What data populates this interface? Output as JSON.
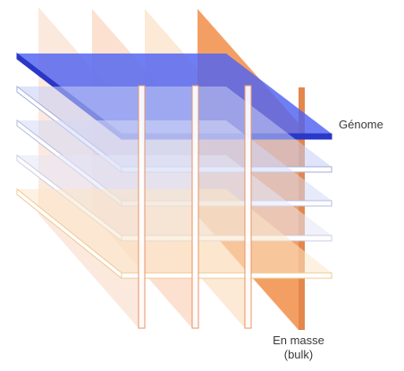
{
  "labels": {
    "genome": "Génome",
    "bulk_line1": "En masse",
    "bulk_line2": "(bulk)"
  },
  "colors": {
    "vertical_planes": [
      "#fbe3d6",
      "#fbd8c4",
      "#fbe4cc",
      "#f29a5c"
    ],
    "vertical_plane_edges": [
      "#f3c6ab",
      "#f2bb9c",
      "#f1cfa8",
      "#e07a3a"
    ],
    "horizontal_planes": [
      "#4f63f0",
      "#c5cdf5",
      "#d3d8f5",
      "#e4e6f6",
      "#fbe6c8"
    ],
    "horizontal_plane_edges": [
      "#2a38c8",
      "#a3add9",
      "#b5bbdc",
      "#c9cce0",
      "#efc892"
    ],
    "post_fill": "#ffffff",
    "post_stroke": "#e5946a"
  }
}
